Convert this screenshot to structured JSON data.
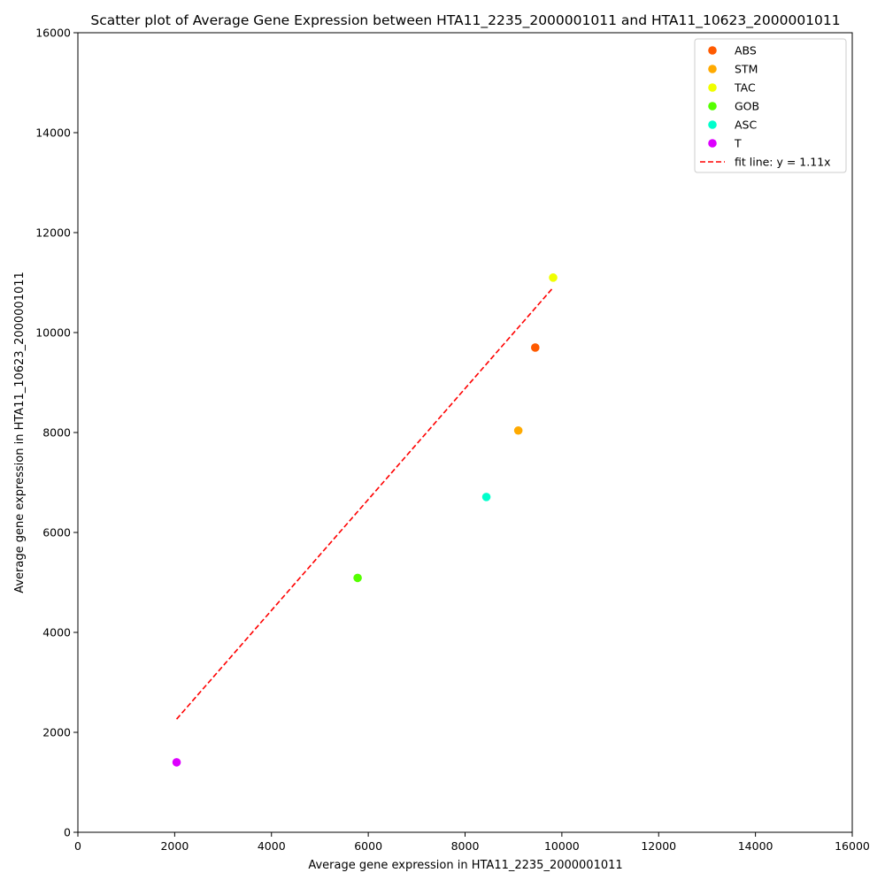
{
  "chart_data": {
    "type": "scatter",
    "title": "Scatter plot of Average Gene Expression between HTA11_2235_2000001011 and HTA11_10623_2000001011",
    "xlabel": "Average gene expression in HTA11_2235_2000001011",
    "ylabel": "Average gene expression in HTA11_10623_2000001011",
    "xlim": [
      0,
      16000
    ],
    "ylim": [
      0,
      16000
    ],
    "xticks": [
      "0",
      "2000",
      "4000",
      "6000",
      "8000",
      "10000",
      "12000",
      "14000",
      "16000"
    ],
    "yticks": [
      "0",
      "2000",
      "4000",
      "6000",
      "8000",
      "10000",
      "12000",
      "14000",
      "16000"
    ],
    "grid": false,
    "legend_position": "top-right",
    "series": [
      {
        "name": "ABS",
        "color": "#ff5a00",
        "points": [
          {
            "x": 9450,
            "y": 9700
          }
        ]
      },
      {
        "name": "STM",
        "color": "#ffaa00",
        "points": [
          {
            "x": 9100,
            "y": 8040
          }
        ]
      },
      {
        "name": "TAC",
        "color": "#f0ff00",
        "points": [
          {
            "x": 9820,
            "y": 11100
          }
        ]
      },
      {
        "name": "GOB",
        "color": "#55ff00",
        "points": [
          {
            "x": 5780,
            "y": 5090
          }
        ]
      },
      {
        "name": "ASC",
        "color": "#00ffcc",
        "points": [
          {
            "x": 8440,
            "y": 6710
          }
        ]
      },
      {
        "name": "T",
        "color": "#dd00ff",
        "points": [
          {
            "x": 2040,
            "y": 1400
          }
        ]
      }
    ],
    "fit_line": {
      "label": "fit line: y = 1.11x",
      "slope": 1.11,
      "x_range": [
        2040,
        9820
      ],
      "color": "#ff0000",
      "style": "dashed"
    }
  }
}
